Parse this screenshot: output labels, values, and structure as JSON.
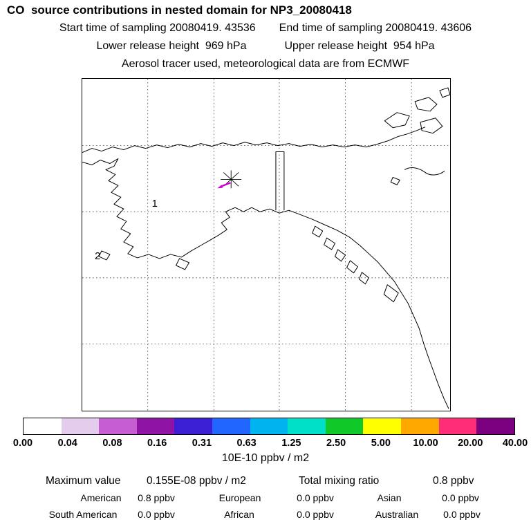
{
  "title": "CO  source contributions in nested domain for NP3_20080418",
  "header": {
    "start_time": "Start time of sampling 20080419. 43536",
    "end_time": "End time of sampling 20080419. 43606",
    "lower_release": "Lower release height  969 hPa",
    "upper_release": "Upper release height  954 hPa",
    "tracer_info": "Aerosol tracer used, meteorological data are from ECMWF"
  },
  "map": {
    "markers": [
      {
        "label": "1"
      },
      {
        "label": "2"
      }
    ]
  },
  "colorbar": {
    "colors": [
      "#ffffff",
      "#e4cdec",
      "#c65ed2",
      "#8f13a5",
      "#3b1fd4",
      "#2066ff",
      "#00b4f0",
      "#00e0c8",
      "#10c828",
      "#ffff00",
      "#ffa800",
      "#ff2d78",
      "#7a0080"
    ],
    "tick_labels": [
      "0.00",
      "0.04",
      "0.08",
      "0.16",
      "0.31",
      "0.63",
      "1.25",
      "2.50",
      "5.00",
      "10.00",
      "20.00",
      "40.00"
    ],
    "units": "10E-10 ppbv / m2"
  },
  "stats": {
    "max_label": "Maximum value",
    "max_value": "0.155E-08 ppbv / m2",
    "total_label": "Total mixing ratio",
    "total_value": "0.8 ppbv",
    "regions": [
      {
        "name": "American",
        "value": "0.8 ppbv"
      },
      {
        "name": "European",
        "value": "0.0 ppbv"
      },
      {
        "name": "Asian",
        "value": "0.0 ppbv"
      },
      {
        "name": "South American",
        "value": "0.0 ppbv"
      },
      {
        "name": "African",
        "value": "0.0 ppbv"
      },
      {
        "name": "Australian",
        "value": "0.0 ppbv"
      }
    ]
  },
  "chart_data": {
    "type": "heatmap",
    "title": "CO source contributions in nested domain for NP3_20080418",
    "subtitle": [
      "Start time of sampling 20080419. 43536",
      "End time of sampling 20080419. 43606",
      "Lower release height 969 hPa",
      "Upper release height 954 hPa",
      "Aerosol tracer used, meteorological data are from ECMWF"
    ],
    "colorbar_levels": [
      0.0,
      0.04,
      0.08,
      0.16,
      0.31,
      0.63,
      1.25,
      2.5,
      5.0,
      10.0,
      20.0,
      40.0
    ],
    "colorbar_units": "10E-10 ppbv / m2",
    "maximum_value": "0.155E-08 ppbv / m2",
    "total_mixing_ratio": "0.8 ppbv",
    "series": [
      {
        "name": "American",
        "value_ppbv": 0.8
      },
      {
        "name": "European",
        "value_ppbv": 0.0
      },
      {
        "name": "Asian",
        "value_ppbv": 0.0
      },
      {
        "name": "South American",
        "value_ppbv": 0.0
      },
      {
        "name": "African",
        "value_ppbv": 0.0
      },
      {
        "name": "Australian",
        "value_ppbv": 0.0
      }
    ],
    "release_points": [
      "1",
      "2"
    ]
  }
}
